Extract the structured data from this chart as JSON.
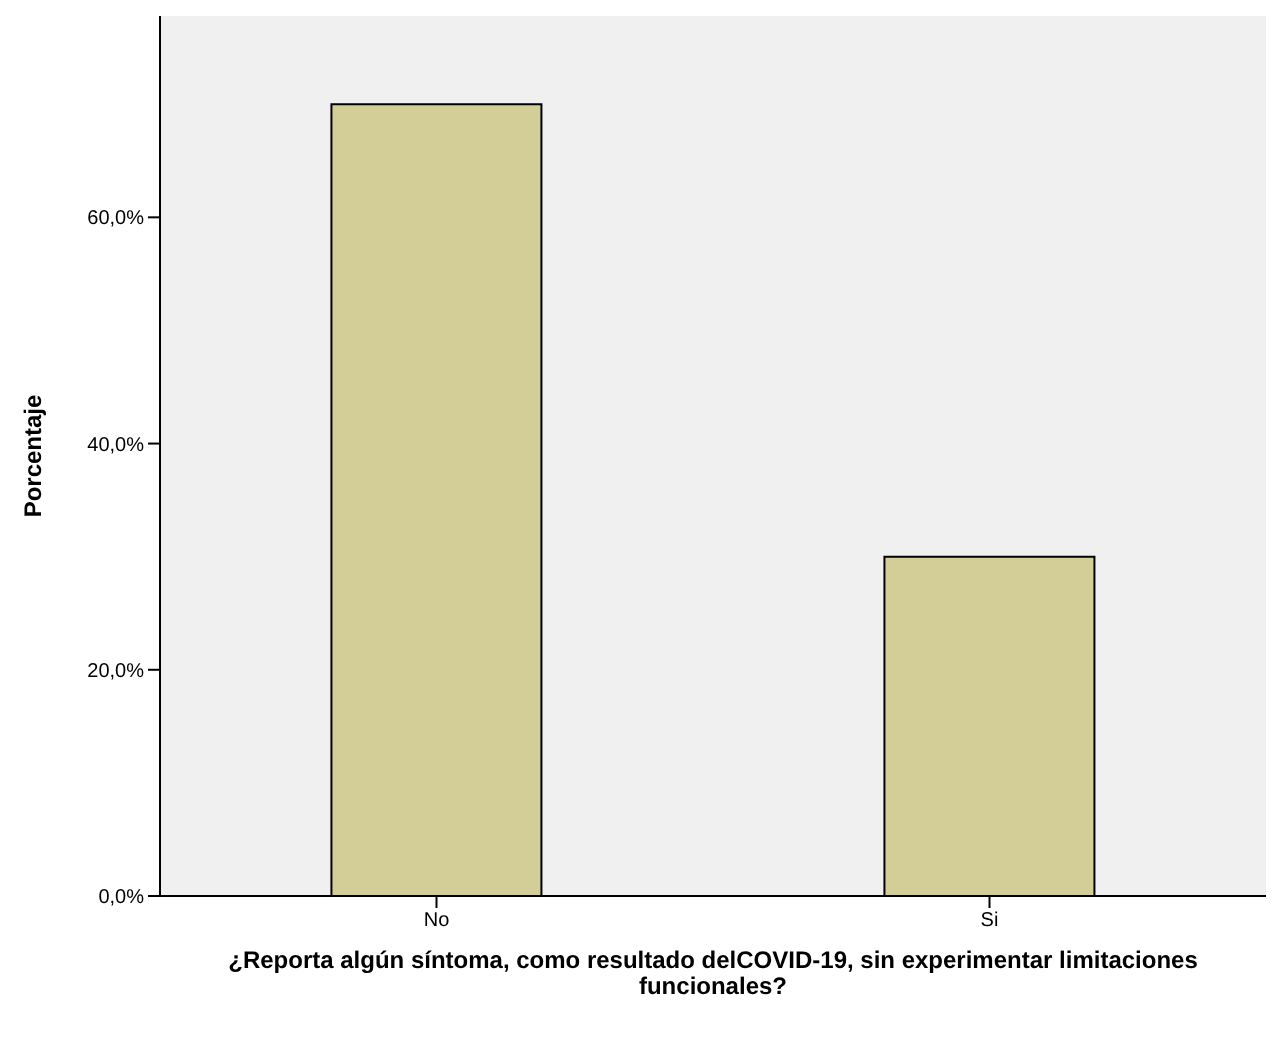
{
  "chart_data": {
    "type": "bar",
    "xlabel": "¿Reporta algún síntoma, como resultado delCOVID-19, sin experimentar limitaciones funcionales?",
    "ylabel": "Porcentaje",
    "categories": [
      "No",
      "Si"
    ],
    "values": [
      70,
      30
    ],
    "color": "#d3ce97",
    "ylim": [
      0,
      77.8
    ],
    "yticks": [
      {
        "value": 0,
        "label": "0,0%"
      },
      {
        "value": 20,
        "label": "20,0%"
      },
      {
        "value": 40,
        "label": "40,0%"
      },
      {
        "value": 60,
        "label": "60,0%"
      }
    ],
    "grid": false,
    "legend": false
  }
}
